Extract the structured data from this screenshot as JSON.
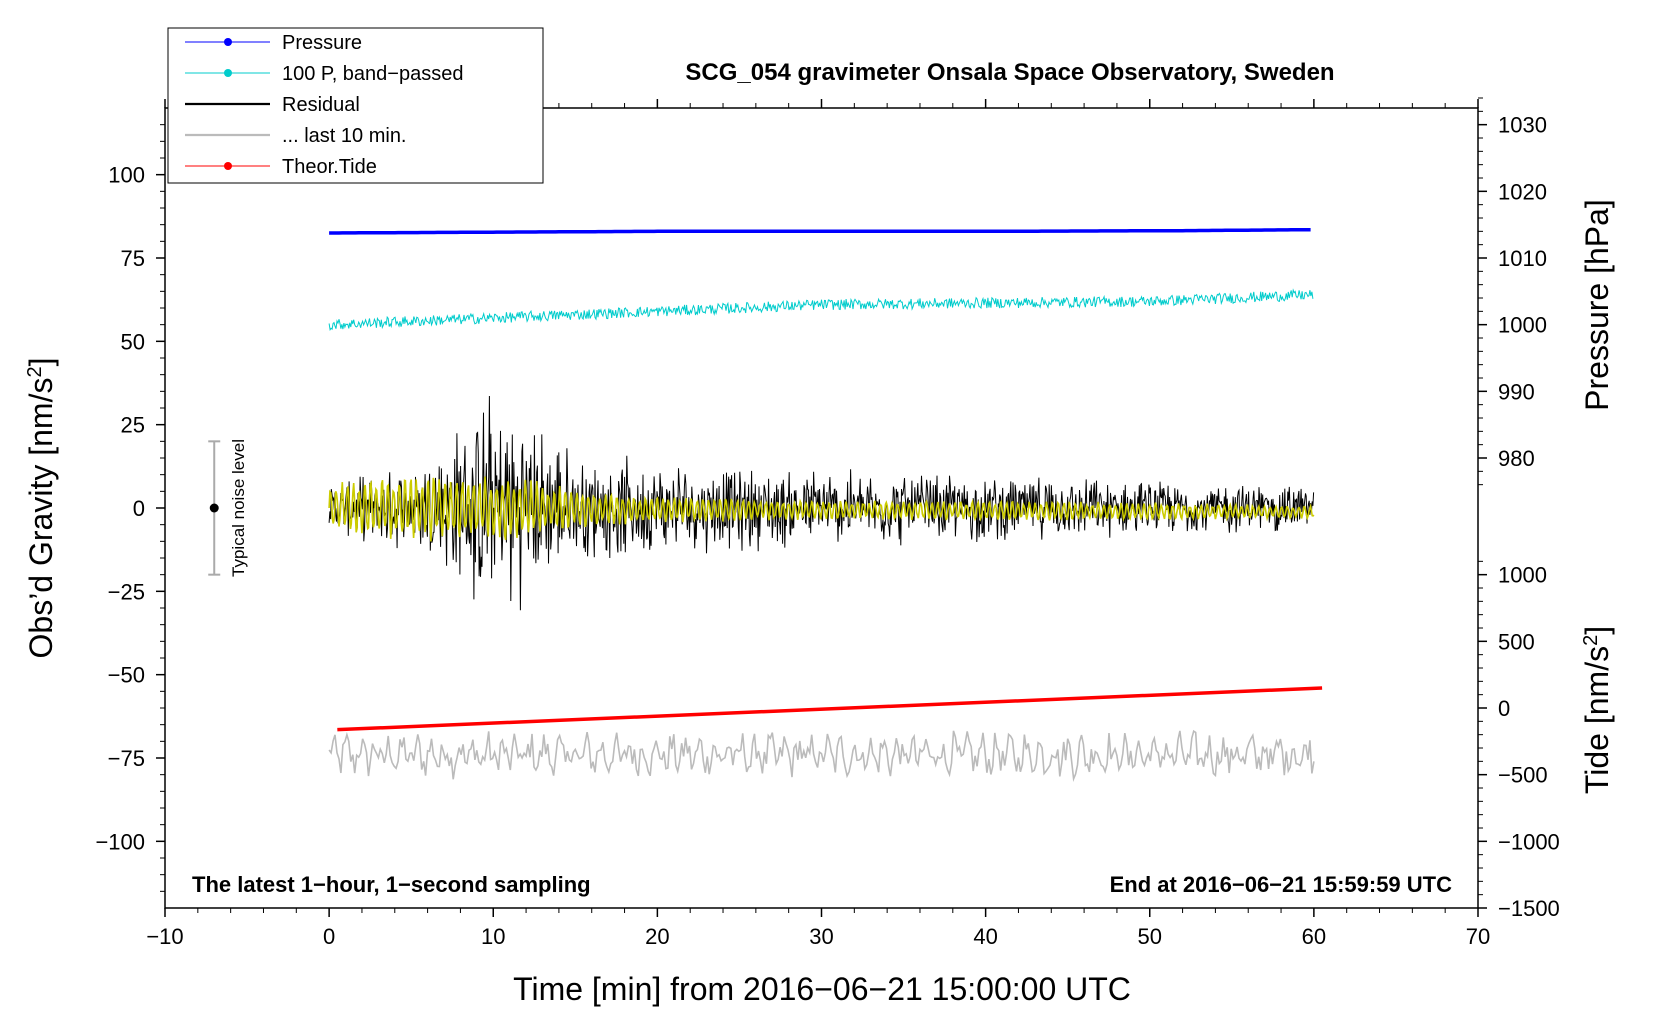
{
  "chart_data": {
    "type": "line",
    "title": "SCG_054 gravimeter Onsala Space Observatory, Sweden",
    "xlabel": "Time [min] from 2016−06−21 15:00:00 UTC",
    "ylabel": "Obs’d Gravity [nm/s²]",
    "ylabel_main": "Obs’d Gravity [nm/s",
    "ylabel_sup": "2",
    "ylabel_end": "]",
    "y2label": "Pressure [hPa]",
    "y3label": "Tide [nm/s²]",
    "y3label_main": "Tide [nm/s",
    "y3label_sup": "2",
    "y3label_end": "]",
    "xlim": [
      -10,
      70
    ],
    "ylim": [
      -120,
      120
    ],
    "x_ticks": [
      -10,
      0,
      10,
      20,
      30,
      40,
      50,
      60,
      70
    ],
    "x_tick_labels": [
      "−10",
      "0",
      "10",
      "20",
      "30",
      "40",
      "50",
      "60",
      "70"
    ],
    "y_ticks": [
      -100,
      -75,
      -50,
      -25,
      0,
      25,
      50,
      75,
      100
    ],
    "y_tick_labels": [
      "−100",
      "−75",
      "−50",
      "−25",
      "0",
      "25",
      "50",
      "75",
      "100"
    ],
    "pressure_axis": {
      "ticks": [
        980,
        990,
        1000,
        1010,
        1020,
        1030
      ],
      "tick_labels": [
        "980",
        "990",
        "1000",
        "1010",
        "1020",
        "1030"
      ],
      "map_left_value": 55,
      "map_left_y": 1000,
      "map_right_value": 75,
      "map_right_y": 1010
    },
    "tide_axis": {
      "ticks": [
        -1500,
        -1000,
        -500,
        0,
        500,
        1000
      ],
      "tick_labels": [
        "−1500",
        "−1000",
        "−500",
        "0",
        "500",
        "1000"
      ],
      "map_left_value": -60,
      "map_left_y": 0,
      "map_right_value": -120,
      "map_right_y": -1500
    },
    "legend": [
      {
        "label": "Pressure",
        "color": "#0000ff",
        "marker": true
      },
      {
        "label": "100 P, band−passed",
        "color": "#00cccc",
        "marker": true
      },
      {
        "label": "Residual",
        "color": "#000000",
        "marker": false
      },
      {
        "label": "... last 10 min.",
        "color": "#bbbbbb",
        "marker": false
      },
      {
        "label": "Theor.Tide",
        "color": "#ff0000",
        "marker": true
      }
    ],
    "series": [
      {
        "name": "Pressure",
        "color": "#0000ff",
        "x": [
          0,
          20,
          40,
          52,
          60
        ],
        "y": [
          82.5,
          83,
          83,
          83.2,
          83.5
        ]
      },
      {
        "name": "100 P, band−passed",
        "color": "#00cccc",
        "x": [
          0,
          10,
          20,
          30,
          40,
          50,
          60
        ],
        "y": [
          55,
          57,
          59,
          61,
          61.5,
          62,
          64
        ]
      },
      {
        "name": "Residual",
        "color": "#000000",
        "x": [
          0,
          5,
          10,
          11,
          15,
          20,
          30,
          40,
          50,
          60
        ],
        "amplitude": [
          8,
          14,
          38,
          35,
          18,
          15,
          13,
          11,
          9,
          8
        ]
      },
      {
        "name": "... last 10 min.",
        "color": "#bbbbbb",
        "x": [
          0,
          60
        ],
        "y": [
          -74,
          -74
        ]
      },
      {
        "name": "Theor.Tide",
        "color": "#ff0000",
        "x": [
          0.5,
          60.5
        ],
        "y": [
          -66.5,
          -54
        ]
      }
    ],
    "noise_level": {
      "label": "Typical noise level",
      "x": -7,
      "y_center": 0,
      "y_range": [
        -20,
        20
      ]
    },
    "footer_left": "The latest 1−hour, 1−second sampling",
    "footer_right": "End at 2016−06−21 15:59:59 UTC"
  }
}
